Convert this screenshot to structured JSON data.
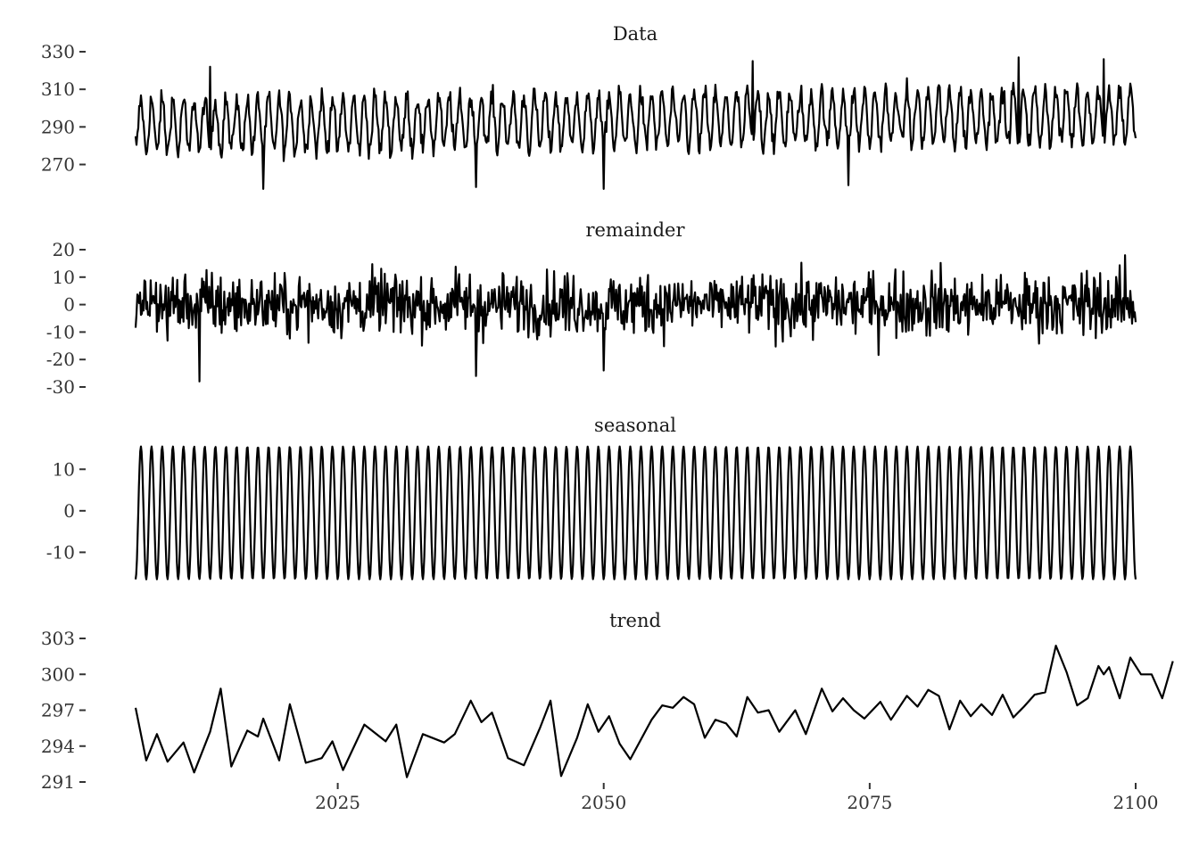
{
  "chart_data": {
    "type": "line",
    "x_range": [
      2006,
      2100
    ],
    "x_ticks": [
      2025,
      2050,
      2075,
      2100
    ],
    "grid": false,
    "legend": "none",
    "line_color": "#000000",
    "panels": [
      {
        "title": "Data",
        "ylim": [
          256,
          328
        ],
        "y_ticks": [
          270,
          290,
          310,
          330
        ],
        "mean_start": 290.5,
        "mean_end": 296.5,
        "amplitude": 14,
        "noise": 5,
        "points": [
          [
            2006,
            285
          ],
          [
            2013,
            322
          ],
          [
            2018,
            256
          ],
          [
            2038,
            258
          ],
          [
            2050,
            256
          ],
          [
            2064,
            325
          ],
          [
            2073,
            259
          ],
          [
            2089,
            327
          ],
          [
            2097,
            326
          ],
          [
            2100,
            284
          ]
        ]
      },
      {
        "title": "remainder",
        "ylim": [
          -30,
          20
        ],
        "y_ticks": [
          -30,
          -20,
          -10,
          0,
          10,
          20
        ],
        "mean_start": 0,
        "mean_end": 0,
        "amplitude": 11,
        "noise": 5,
        "points": [
          [
            2012,
            -28
          ],
          [
            2038,
            -26
          ],
          [
            2050,
            -24
          ],
          [
            2099,
            18
          ]
        ]
      },
      {
        "title": "seasonal",
        "ylim": [
          -17,
          15
        ],
        "y_ticks": [
          -10,
          0,
          10
        ],
        "amplitude": 16,
        "period": 1,
        "points": [
          [
            2006,
            -15
          ],
          [
            2006.5,
            15
          ],
          [
            2007,
            -17
          ],
          [
            2100,
            -15
          ]
        ]
      },
      {
        "title": "trend",
        "ylim": [
          291,
          302.5
        ],
        "y_ticks": [
          291,
          294,
          297,
          300,
          303
        ],
        "points": [
          [
            2006,
            297.2
          ],
          [
            2007,
            292.8
          ],
          [
            2008,
            295.0
          ],
          [
            2009,
            292.7
          ],
          [
            2010.5,
            294.3
          ],
          [
            2011.5,
            291.8
          ],
          [
            2013,
            295.2
          ],
          [
            2014,
            298.8
          ],
          [
            2015,
            292.3
          ],
          [
            2016.5,
            295.3
          ],
          [
            2017.5,
            294.8
          ],
          [
            2018,
            296.3
          ],
          [
            2019.5,
            292.8
          ],
          [
            2020.5,
            297.5
          ],
          [
            2022,
            292.6
          ],
          [
            2023.5,
            293.0
          ],
          [
            2024.5,
            294.4
          ],
          [
            2025.5,
            292.0
          ],
          [
            2027.5,
            295.8
          ],
          [
            2029.5,
            294.4
          ],
          [
            2030.5,
            295.8
          ],
          [
            2031.5,
            291.4
          ],
          [
            2033,
            295.0
          ],
          [
            2035,
            294.3
          ],
          [
            2036,
            295.0
          ],
          [
            2037.5,
            297.8
          ],
          [
            2038.5,
            296.0
          ],
          [
            2039.5,
            296.8
          ],
          [
            2041,
            293.0
          ],
          [
            2042.5,
            292.4
          ],
          [
            2044,
            295.5
          ],
          [
            2045,
            297.8
          ],
          [
            2046,
            291.5
          ],
          [
            2047.5,
            294.7
          ],
          [
            2048.5,
            297.5
          ],
          [
            2049.5,
            295.2
          ],
          [
            2050.5,
            296.5
          ],
          [
            2051.5,
            294.2
          ],
          [
            2052.5,
            292.9
          ],
          [
            2054.5,
            296.2
          ],
          [
            2055.5,
            297.4
          ],
          [
            2056.5,
            297.2
          ],
          [
            2057.5,
            298.1
          ],
          [
            2058.5,
            297.5
          ],
          [
            2059.5,
            294.7
          ],
          [
            2060.5,
            296.2
          ],
          [
            2061.5,
            295.9
          ],
          [
            2062.5,
            294.8
          ],
          [
            2063.5,
            298.1
          ],
          [
            2064.5,
            296.8
          ],
          [
            2065.5,
            297.0
          ],
          [
            2066.5,
            295.2
          ],
          [
            2068,
            297.0
          ],
          [
            2069,
            295.0
          ],
          [
            2070.5,
            298.8
          ],
          [
            2071.5,
            296.9
          ],
          [
            2072.5,
            298.0
          ],
          [
            2073.5,
            297.0
          ],
          [
            2074.5,
            296.3
          ],
          [
            2076,
            297.7
          ],
          [
            2077,
            296.2
          ],
          [
            2078.5,
            298.2
          ],
          [
            2079.5,
            297.3
          ],
          [
            2080.5,
            298.7
          ],
          [
            2081.5,
            298.2
          ],
          [
            2082.5,
            295.4
          ],
          [
            2083.5,
            297.8
          ],
          [
            2084.5,
            296.5
          ],
          [
            2085.5,
            297.5
          ],
          [
            2086.5,
            296.6
          ],
          [
            2087.5,
            298.3
          ],
          [
            2088.5,
            296.4
          ],
          [
            2089.5,
            297.3
          ],
          [
            2090.5,
            298.3
          ],
          [
            2091.5,
            298.5
          ],
          [
            2092.5,
            302.4
          ],
          [
            2093.5,
            300.2
          ],
          [
            2094.5,
            297.4
          ],
          [
            2095.5,
            298.0
          ],
          [
            2096.5,
            300.7
          ],
          [
            2097,
            300.0
          ],
          [
            2097.5,
            300.6
          ],
          [
            2098.5,
            298.0
          ],
          [
            2099.5,
            301.4
          ],
          [
            2100.5,
            300.0
          ],
          [
            2101.5,
            300.0
          ],
          [
            2102.5,
            298.0
          ],
          [
            2103.5,
            301.1
          ]
        ]
      }
    ]
  }
}
